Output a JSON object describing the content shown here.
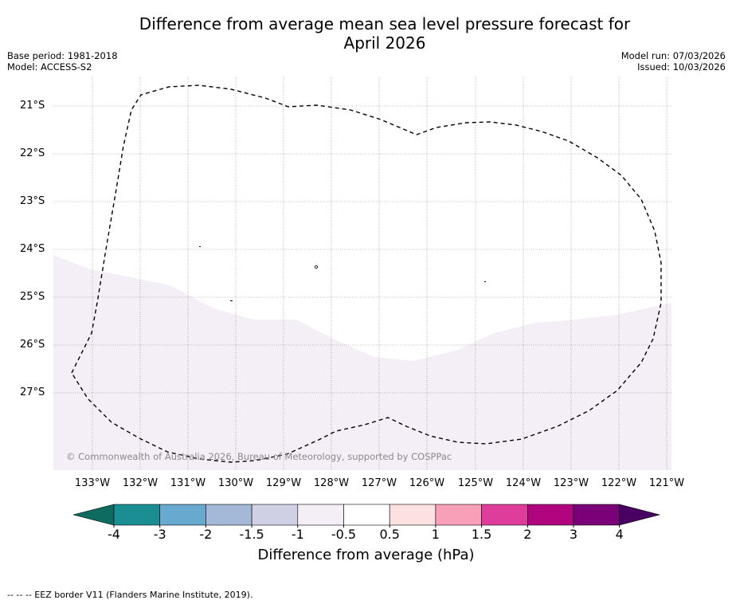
{
  "title_line1": "Difference from average mean sea level pressure forecast for",
  "title_line2": "April 2026",
  "base_period": "Base period: 1981-2018",
  "model": "Model: ACCESS-S2",
  "model_run": "Model run: 07/03/2026",
  "issued": "Issued: 10/03/2026",
  "copyright": "© Commonwealth of Australia 2026, Bureau of Meteorology, supported by COSPPac",
  "longitudes": [
    "133°W",
    "132°W",
    "131°W",
    "130°W",
    "129°W",
    "128°W",
    "127°W",
    "126°W",
    "125°W",
    "124°W",
    "123°W",
    "122°W",
    "121°W"
  ],
  "latitudes": [
    "21°S",
    "22°S",
    "23°S",
    "24°S",
    "25°S",
    "26°S",
    "27°S"
  ],
  "colorbar": {
    "title": "Difference from average (hPa)",
    "ticks": [
      "-4",
      "-3",
      "-2",
      "-1.5",
      "-1",
      "-0.5",
      "0.5",
      "1",
      "1.5",
      "2",
      "3",
      "4"
    ],
    "colors": [
      "#1b8e94",
      "#68a9d0",
      "#a4b8d8",
      "#d0d0e4",
      "#f4eef6",
      "#ffffff",
      "#fde0e0",
      "#f8a0b8",
      "#de3d9c",
      "#b10580",
      "#7a0177"
    ],
    "under_color": "#0d6b60",
    "over_color": "#4a0063"
  },
  "map_fill": {
    "visible_class": "-1 to -0.5",
    "color": "#f4eef6"
  },
  "footer": "-- -- -- EEZ border V11 (Flanders Marine Institute, 2019)."
}
